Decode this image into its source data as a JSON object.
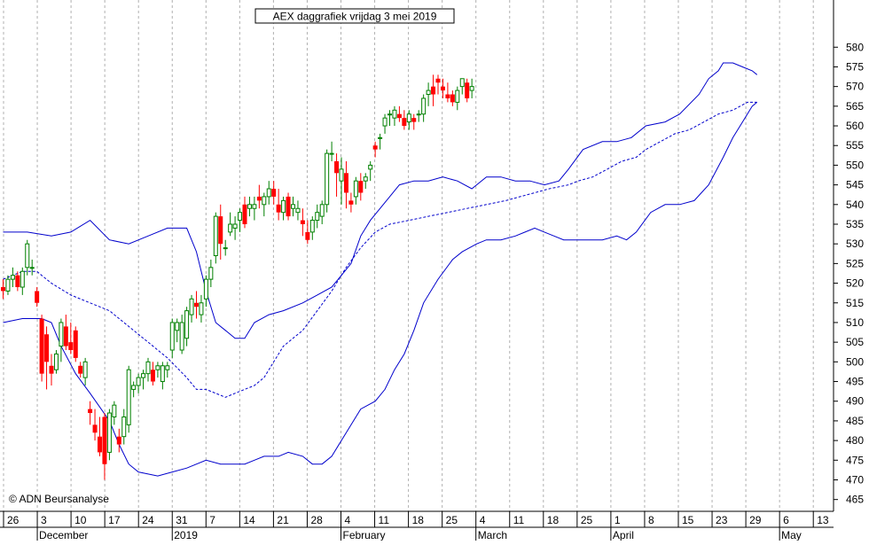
{
  "chart_data": {
    "type": "candlestick",
    "title": "AEX daggrafiek vrijdag 3 mei 2019",
    "copyright": "© ADN Beursanalyse",
    "ylim": [
      462,
      592
    ],
    "y_ticks": [
      465,
      470,
      475,
      480,
      485,
      490,
      495,
      500,
      505,
      510,
      515,
      520,
      525,
      530,
      535,
      540,
      545,
      550,
      555,
      560,
      565,
      570,
      575,
      580
    ],
    "x_day_labels": [
      "26",
      "3",
      "10",
      "17",
      "24",
      "31",
      "7",
      "14",
      "21",
      "28",
      "4",
      "11",
      "18",
      "25",
      "4",
      "11",
      "18",
      "25",
      "1",
      "8",
      "15",
      "23",
      "29",
      "6",
      "13"
    ],
    "x_month_labels": [
      {
        "label": "December",
        "at_day": "3"
      },
      {
        "label": "2019",
        "at_day": "31"
      },
      {
        "label": "February",
        "at_day": "4"
      },
      {
        "label": "March",
        "at_day": "4"
      },
      {
        "label": "April",
        "at_day": "1"
      },
      {
        "label": "May",
        "at_day": "6"
      }
    ],
    "colors": {
      "up": "#008000",
      "down": "#ff0000",
      "band": "#0000cc",
      "grid": "#b0b0b0"
    },
    "candles": [
      [
        519,
        521,
        516,
        518
      ],
      [
        518,
        522,
        517,
        521
      ],
      [
        521,
        524,
        519,
        522
      ],
      [
        522,
        523,
        518,
        519
      ],
      [
        519,
        524,
        517,
        523
      ],
      [
        524,
        531,
        522,
        530
      ],
      [
        524,
        526,
        522,
        524
      ],
      [
        518,
        519,
        514,
        515
      ],
      [
        511,
        512,
        495,
        497
      ],
      [
        507,
        509,
        493,
        500
      ],
      [
        499,
        502,
        494,
        497
      ],
      [
        498,
        503,
        497,
        502
      ],
      [
        504,
        511,
        500,
        510
      ],
      [
        509,
        512,
        503,
        504
      ],
      [
        505,
        510,
        502,
        503
      ],
      [
        508,
        509,
        500,
        501
      ],
      [
        499,
        500,
        496,
        497
      ],
      [
        496,
        501,
        494,
        500
      ],
      [
        488,
        490,
        484,
        487
      ],
      [
        484,
        488,
        480,
        482
      ],
      [
        481,
        486,
        476,
        477
      ],
      [
        486,
        487,
        470,
        474
      ],
      [
        477,
        488,
        475,
        487
      ],
      [
        486,
        490,
        484,
        489
      ],
      [
        481,
        483,
        477,
        479
      ],
      [
        481,
        488,
        479,
        486
      ],
      [
        484,
        499,
        482,
        498
      ],
      [
        493,
        495,
        491,
        494
      ],
      [
        494,
        497,
        492,
        496
      ],
      [
        496,
        498,
        493,
        497
      ],
      [
        497,
        501,
        495,
        500
      ],
      [
        498,
        500,
        494,
        495
      ],
      [
        498,
        500,
        496,
        499
      ],
      [
        495,
        500,
        493,
        499
      ],
      [
        498,
        500,
        496,
        499
      ],
      [
        503,
        511,
        501,
        510
      ],
      [
        508,
        511,
        505,
        510
      ],
      [
        503,
        512,
        502,
        510
      ],
      [
        506,
        514,
        504,
        513
      ],
      [
        512,
        517,
        510,
        516
      ],
      [
        515,
        518,
        511,
        514
      ],
      [
        512,
        517,
        510,
        515
      ],
      [
        516,
        522,
        514,
        521
      ],
      [
        521,
        526,
        519,
        524
      ],
      [
        527,
        538,
        525,
        537
      ],
      [
        537,
        540,
        526,
        530
      ],
      [
        529,
        531,
        527,
        529
      ],
      [
        533,
        538,
        532,
        535
      ],
      [
        534,
        537,
        531,
        535
      ],
      [
        536,
        539,
        533,
        538
      ],
      [
        540,
        542,
        534,
        535
      ],
      [
        539,
        542,
        537,
        540
      ],
      [
        539,
        542,
        536,
        540
      ],
      [
        542,
        545,
        539,
        541
      ],
      [
        540,
        543,
        537,
        542
      ],
      [
        542,
        546,
        540,
        544
      ],
      [
        544,
        546,
        540,
        542
      ],
      [
        540,
        544,
        536,
        538
      ],
      [
        538,
        542,
        536,
        541
      ],
      [
        542,
        543,
        536,
        537
      ],
      [
        539,
        542,
        537,
        540
      ],
      [
        538,
        541,
        536,
        539
      ],
      [
        536,
        539,
        532,
        535
      ],
      [
        533,
        536,
        530,
        531
      ],
      [
        533,
        537,
        531,
        536
      ],
      [
        536,
        540,
        534,
        538
      ],
      [
        537,
        541,
        535,
        540
      ],
      [
        540,
        554,
        538,
        553
      ],
      [
        553,
        556,
        551,
        553
      ],
      [
        551,
        553,
        542,
        548
      ],
      [
        546,
        552,
        540,
        549
      ],
      [
        548,
        551,
        539,
        543
      ],
      [
        541,
        543,
        538,
        540
      ],
      [
        542,
        547,
        540,
        546
      ],
      [
        546,
        548,
        541,
        543
      ],
      [
        546,
        548,
        544,
        547
      ],
      [
        549,
        551,
        546,
        550
      ],
      [
        555,
        556,
        552,
        554
      ],
      [
        557,
        558,
        554,
        557
      ],
      [
        560,
        563,
        558,
        562
      ],
      [
        563,
        564,
        560,
        563
      ],
      [
        562,
        565,
        560,
        564
      ],
      [
        563,
        565,
        561,
        562
      ],
      [
        562,
        564,
        559,
        560
      ],
      [
        561,
        564,
        559,
        563
      ],
      [
        562,
        563,
        559,
        561
      ],
      [
        563,
        564,
        561,
        563
      ],
      [
        563,
        568,
        561,
        567
      ],
      [
        568,
        571,
        565,
        569
      ],
      [
        570,
        573,
        565,
        568
      ],
      [
        572,
        573,
        568,
        571
      ],
      [
        570,
        572,
        567,
        569
      ],
      [
        568,
        571,
        566,
        567
      ],
      [
        568,
        569,
        565,
        566
      ],
      [
        566,
        570,
        564,
        569
      ],
      [
        570,
        572,
        568,
        572
      ],
      [
        571,
        572,
        566,
        567
      ],
      [
        569,
        572,
        567,
        570
      ]
    ],
    "bb_upper": [
      [
        0,
        533
      ],
      [
        5,
        533
      ],
      [
        10,
        532
      ],
      [
        14,
        533
      ],
      [
        18,
        536
      ],
      [
        22,
        531
      ],
      [
        26,
        530
      ],
      [
        30,
        532
      ],
      [
        34,
        534
      ],
      [
        38,
        534
      ],
      [
        40,
        528
      ],
      [
        42,
        518
      ],
      [
        44,
        510
      ],
      [
        46,
        508
      ],
      [
        48,
        506
      ],
      [
        50,
        506
      ],
      [
        52,
        510
      ],
      [
        55,
        512
      ],
      [
        58,
        513
      ],
      [
        62,
        515
      ],
      [
        65,
        517
      ],
      [
        68,
        519
      ],
      [
        70,
        522
      ],
      [
        72,
        525
      ],
      [
        74,
        532
      ],
      [
        76,
        536
      ],
      [
        80,
        542
      ],
      [
        82,
        545
      ],
      [
        85,
        546
      ],
      [
        88,
        546
      ],
      [
        91,
        547
      ],
      [
        94,
        546
      ],
      [
        97,
        544
      ],
      [
        100,
        547
      ],
      [
        103,
        547
      ],
      [
        106,
        546
      ],
      [
        109,
        546
      ],
      [
        112,
        545
      ],
      [
        115,
        546
      ],
      [
        117,
        549
      ],
      [
        120,
        554
      ],
      [
        124,
        556
      ],
      [
        127,
        556
      ],
      [
        130,
        557
      ],
      [
        133,
        560
      ],
      [
        137,
        561
      ],
      [
        140,
        563
      ],
      [
        144,
        568
      ],
      [
        146,
        572
      ],
      [
        148,
        574
      ],
      [
        149,
        576
      ],
      [
        151,
        576
      ],
      [
        153,
        575
      ],
      [
        155,
        574
      ],
      [
        156,
        573
      ]
    ],
    "bb_middle": [
      [
        0,
        521
      ],
      [
        4,
        523
      ],
      [
        7,
        523
      ],
      [
        10,
        520
      ],
      [
        14,
        517
      ],
      [
        18,
        515
      ],
      [
        22,
        513
      ],
      [
        26,
        509
      ],
      [
        30,
        505
      ],
      [
        34,
        501
      ],
      [
        38,
        496
      ],
      [
        40,
        493
      ],
      [
        42,
        493
      ],
      [
        44,
        492
      ],
      [
        46,
        491
      ],
      [
        48,
        492
      ],
      [
        50,
        493
      ],
      [
        52,
        494
      ],
      [
        54,
        496
      ],
      [
        56,
        500
      ],
      [
        58,
        504
      ],
      [
        62,
        508
      ],
      [
        65,
        513
      ],
      [
        68,
        518
      ],
      [
        71,
        524
      ],
      [
        74,
        529
      ],
      [
        77,
        533
      ],
      [
        80,
        535
      ],
      [
        84,
        536
      ],
      [
        88,
        537
      ],
      [
        92,
        538
      ],
      [
        96,
        539
      ],
      [
        100,
        540
      ],
      [
        104,
        541
      ],
      [
        107,
        542
      ],
      [
        110,
        543
      ],
      [
        113,
        544
      ],
      [
        117,
        545
      ],
      [
        119,
        546
      ],
      [
        122,
        547
      ],
      [
        125,
        549
      ],
      [
        128,
        551
      ],
      [
        131,
        552
      ],
      [
        133,
        554
      ],
      [
        136,
        556
      ],
      [
        139,
        558
      ],
      [
        142,
        559
      ],
      [
        145,
        561
      ],
      [
        148,
        563
      ],
      [
        151,
        564
      ],
      [
        154,
        566
      ],
      [
        156,
        566
      ]
    ],
    "bb_lower": [
      [
        0,
        510
      ],
      [
        4,
        511
      ],
      [
        8,
        511
      ],
      [
        10,
        510
      ],
      [
        12,
        504
      ],
      [
        15,
        497
      ],
      [
        18,
        492
      ],
      [
        22,
        485
      ],
      [
        24,
        479
      ],
      [
        26,
        474
      ],
      [
        28,
        472
      ],
      [
        32,
        471
      ],
      [
        35,
        472
      ],
      [
        38,
        473
      ],
      [
        42,
        475
      ],
      [
        45,
        474
      ],
      [
        48,
        474
      ],
      [
        50,
        474
      ],
      [
        52,
        475
      ],
      [
        54,
        476
      ],
      [
        57,
        476
      ],
      [
        59,
        477
      ],
      [
        62,
        476
      ],
      [
        64,
        474
      ],
      [
        66,
        474
      ],
      [
        68,
        476
      ],
      [
        70,
        480
      ],
      [
        72,
        484
      ],
      [
        74,
        488
      ],
      [
        77,
        490
      ],
      [
        79,
        493
      ],
      [
        81,
        498
      ],
      [
        83,
        502
      ],
      [
        85,
        508
      ],
      [
        87,
        515
      ],
      [
        90,
        521
      ],
      [
        93,
        526
      ],
      [
        95,
        528
      ],
      [
        98,
        530
      ],
      [
        100,
        531
      ],
      [
        103,
        531
      ],
      [
        106,
        532
      ],
      [
        108,
        533
      ],
      [
        110,
        534
      ],
      [
        112,
        533
      ],
      [
        114,
        532
      ],
      [
        116,
        531
      ],
      [
        118,
        531
      ],
      [
        121,
        531
      ],
      [
        124,
        531
      ],
      [
        127,
        532
      ],
      [
        129,
        531
      ],
      [
        131,
        533
      ],
      [
        134,
        538
      ],
      [
        137,
        540
      ],
      [
        140,
        540
      ],
      [
        143,
        541
      ],
      [
        146,
        545
      ],
      [
        149,
        552
      ],
      [
        151,
        557
      ],
      [
        153,
        561
      ],
      [
        155,
        565
      ],
      [
        156,
        566
      ]
    ]
  }
}
